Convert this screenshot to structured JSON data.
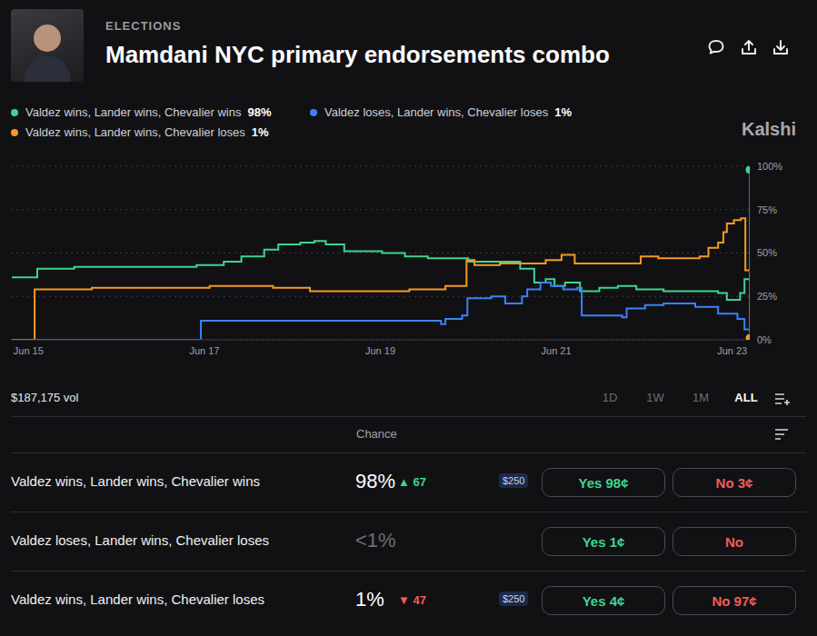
{
  "header": {
    "category": "ELECTIONS",
    "title": "Mamdani NYC primary endorsements combo"
  },
  "watermark": "Kalshi",
  "chart_data": {
    "type": "line",
    "legend": "top",
    "grid": true,
    "line_style": "step",
    "xlim": [
      14.8,
      23.2
    ],
    "xticks": [
      {
        "value": 15,
        "label": "Jun 15"
      },
      {
        "value": 17,
        "label": "Jun 17"
      },
      {
        "value": 19,
        "label": "Jun 19"
      },
      {
        "value": 21,
        "label": "Jun 21"
      },
      {
        "value": 23,
        "label": "Jun 23"
      }
    ],
    "ylim": [
      0,
      100
    ],
    "yticks": [
      {
        "value": 0,
        "label": "0%"
      },
      {
        "value": 25,
        "label": "25%"
      },
      {
        "value": 50,
        "label": "50%"
      },
      {
        "value": 75,
        "label": "75%"
      },
      {
        "value": 100,
        "label": "100%"
      }
    ],
    "series": [
      {
        "name": "Valdez wins, Lander wins, Chevalier wins",
        "legend_label": "98%",
        "color": "#3dd68c",
        "marker": "end",
        "x": [
          14.81,
          15.1,
          15.52,
          16.91,
          17.22,
          17.42,
          17.68,
          17.84,
          18.09,
          18.25,
          18.38,
          18.59,
          19.02,
          19.28,
          19.54,
          20.0,
          20.59,
          20.75,
          20.88,
          20.98,
          21.1,
          21.27,
          21.49,
          21.7,
          21.91,
          22.22,
          22.84,
          22.94,
          23.09,
          23.14,
          23.2
        ],
        "values": [
          36,
          41,
          42,
          43,
          45,
          48,
          52,
          55,
          56,
          57,
          55,
          51,
          50,
          48,
          47,
          45,
          41,
          33,
          35,
          31,
          33,
          28,
          30,
          31,
          29,
          28,
          27,
          23,
          27,
          35,
          98
        ]
      },
      {
        "name": "Valdez loses, Lander wins, Chevalier loses",
        "legend_label": "1%",
        "color": "#3b82f6",
        "marker": "none",
        "x": [
          14.81,
          16.96,
          19.64,
          19.69,
          19.74,
          19.93,
          19.99,
          20.26,
          20.42,
          20.61,
          20.67,
          20.82,
          20.94,
          21.08,
          21.24,
          21.29,
          21.75,
          21.8,
          22.01,
          22.22,
          22.58,
          22.84,
          23.06,
          23.14,
          23.2
        ],
        "values": [
          0,
          11,
          11,
          9,
          12,
          14,
          24,
          25,
          21,
          25,
          29,
          33,
          31,
          29,
          30,
          14,
          13,
          18,
          20,
          21,
          19,
          15,
          12,
          6,
          1
        ]
      },
      {
        "name": "Valdez wins, Lander wins, Chevalier loses",
        "legend_label": "1%",
        "color": "#f59a23",
        "marker": "end",
        "x": [
          14.81,
          15.07,
          15.72,
          17.06,
          17.78,
          18.2,
          19.33,
          19.74,
          19.98,
          20.07,
          20.36,
          20.88,
          21.06,
          21.21,
          21.96,
          22.16,
          22.63,
          22.73,
          22.84,
          22.9,
          22.94,
          23.02,
          23.1,
          23.15,
          23.2
        ],
        "values": [
          0,
          29,
          30,
          31,
          30,
          28,
          29,
          31,
          46,
          43,
          44,
          46,
          49,
          44,
          48,
          47,
          48,
          53,
          56,
          62,
          67,
          69,
          70,
          40,
          1
        ]
      }
    ]
  },
  "volume": "$187,175 vol",
  "ranges": [
    "1D",
    "1W",
    "1M",
    "ALL"
  ],
  "active_range": "ALL",
  "table": {
    "header": "Chance",
    "rows": [
      {
        "name": "Valdez wins, Lander wins, Chevalier wins",
        "chance": "98%",
        "change": "▲ 67",
        "badge": "$250",
        "yes": "Yes 98¢",
        "no": "No 3¢"
      },
      {
        "name": "Valdez loses, Lander wins, Chevalier loses",
        "chance": "<1%",
        "yes": "Yes 1¢",
        "no": "No"
      },
      {
        "name": "Valdez wins, Lander wins, Chevalier loses",
        "chance": "1%",
        "change": "▼ 47",
        "badge": "$250",
        "yes": "Yes 4¢",
        "no": "No 97¢"
      }
    ]
  }
}
